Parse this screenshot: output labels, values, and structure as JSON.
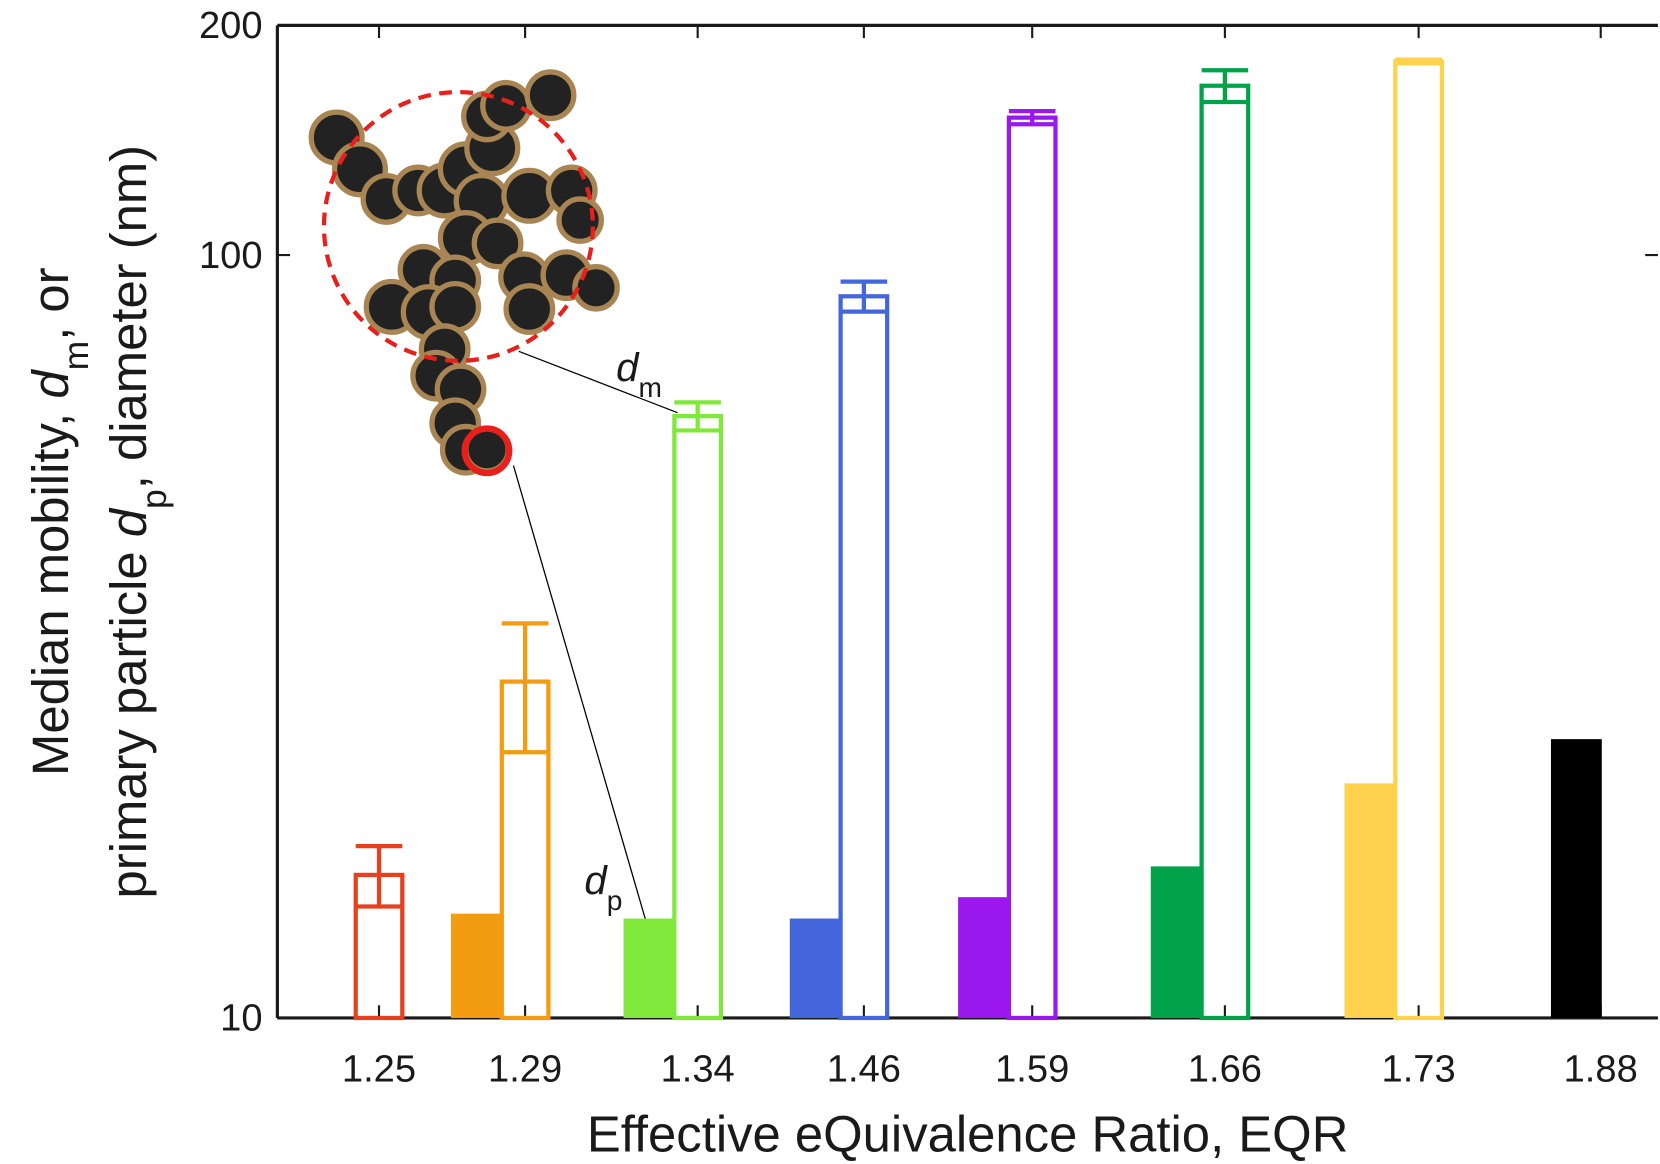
{
  "chart_data": {
    "type": "bar",
    "log_y": true,
    "xlabel": "Effective eQuivalence Ratio, EQR",
    "ylabel": [
      [
        {
          "t": "Median mobility, "
        },
        {
          "t": "d",
          "i": true
        },
        {
          "t": "m",
          "sub": true
        },
        {
          "t": ", or"
        }
      ],
      [
        {
          "t": "primary particle "
        },
        {
          "t": "d",
          "i": true
        },
        {
          "t": "p",
          "sub": true
        },
        {
          "t": ", diameter (nm)"
        }
      ]
    ],
    "categories": [
      "1.25",
      "1.29",
      "1.34",
      "1.46",
      "1.59",
      "1.66",
      "1.73",
      "1.88"
    ],
    "colors": [
      "#e8401c",
      "#f39c12",
      "#7fe83a",
      "#4466dd",
      "#9a17ee",
      "#00a34a",
      "#ffd24d",
      "#000000"
    ],
    "series": [
      {
        "style": "filled",
        "values": [
          null,
          13.7,
          13.5,
          13.5,
          14.4,
          15.8,
          20.3,
          23.2
        ]
      },
      {
        "style": "open",
        "values": [
          15.4,
          27.6,
          61.5,
          88.3,
          151.4,
          166.7,
          179.4,
          null
        ],
        "errors": [
          1.4,
          5.3,
          2.6,
          4,
          3,
          8,
          1,
          null
        ]
      }
    ],
    "annotations": [
      [
        {
          "t": "d",
          "i": true
        },
        {
          "t": "m",
          "sub": true
        }
      ],
      [
        {
          "t": "d",
          "i": true
        },
        {
          "t": "p",
          "sub": true
        }
      ]
    ],
    "ylim": [
      10,
      200
    ],
    "yticks": [
      10,
      100,
      200
    ]
  }
}
